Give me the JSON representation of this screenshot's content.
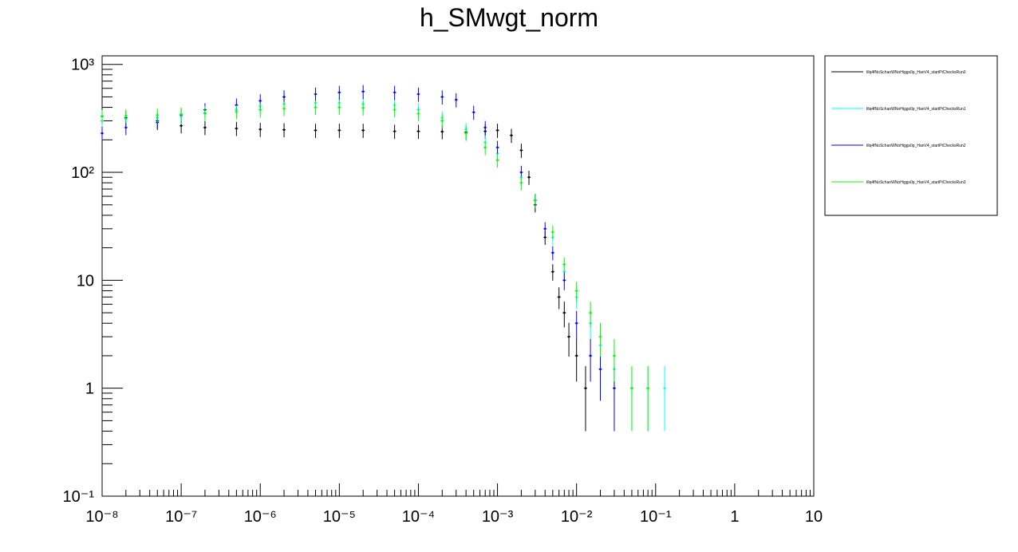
{
  "chart_data": {
    "type": "scatter",
    "title": "h_SMwgt_norm",
    "xlabel": "",
    "ylabel": "",
    "xscale": "log",
    "yscale": "log",
    "xlim": [
      1e-08,
      10
    ],
    "ylim": [
      0.1,
      1200
    ],
    "x_ticks": [
      {
        "value": 1e-08,
        "label": "10⁻⁸"
      },
      {
        "value": 1e-07,
        "label": "10⁻⁷"
      },
      {
        "value": 1e-06,
        "label": "10⁻⁶"
      },
      {
        "value": 1e-05,
        "label": "10⁻⁵"
      },
      {
        "value": 0.0001,
        "label": "10⁻⁴"
      },
      {
        "value": 0.001,
        "label": "10⁻³"
      },
      {
        "value": 0.01,
        "label": "10⁻²"
      },
      {
        "value": 0.1,
        "label": "10⁻¹"
      },
      {
        "value": 1,
        "label": "1"
      },
      {
        "value": 10,
        "label": "10"
      }
    ],
    "y_ticks": [
      {
        "value": 0.1,
        "label": "10⁻¹"
      },
      {
        "value": 1,
        "label": "1"
      },
      {
        "value": 10,
        "label": "10"
      },
      {
        "value": 100,
        "label": "10²"
      },
      {
        "value": 1000,
        "label": "10³"
      }
    ],
    "legend_position": "right",
    "grid": false,
    "series": [
      {
        "name": "tllq4fNoSchanWNoHiggs0p_HanV4_startPtChecksRun0",
        "color": "#000000",
        "points": [
          [
            1e-08,
            330
          ],
          [
            2e-08,
            320
          ],
          [
            5e-08,
            290
          ],
          [
            1e-07,
            270
          ],
          [
            2e-07,
            260
          ],
          [
            5e-07,
            255
          ],
          [
            1e-06,
            250
          ],
          [
            2e-06,
            248
          ],
          [
            5e-06,
            245
          ],
          [
            1e-05,
            245
          ],
          [
            2e-05,
            245
          ],
          [
            5e-05,
            240
          ],
          [
            0.0001,
            240
          ],
          [
            0.0002,
            238
          ],
          [
            0.0004,
            235
          ],
          [
            0.0007,
            240
          ],
          [
            0.001,
            245
          ],
          [
            0.0015,
            220
          ],
          [
            0.002,
            160
          ],
          [
            0.0025,
            90
          ],
          [
            0.003,
            50
          ],
          [
            0.004,
            25
          ],
          [
            0.005,
            12
          ],
          [
            0.006,
            7
          ],
          [
            0.007,
            5
          ],
          [
            0.008,
            3
          ],
          [
            0.01,
            2
          ],
          [
            0.013,
            1
          ]
        ]
      },
      {
        "name": "tllq4fNoSchanWNoHiggs0p_HanV4_startPtChecksRun1",
        "color": "#00ffff",
        "points": [
          [
            1e-08,
            300
          ],
          [
            2e-08,
            310
          ],
          [
            5e-08,
            320
          ],
          [
            1e-07,
            330
          ],
          [
            2e-07,
            350
          ],
          [
            5e-07,
            380
          ],
          [
            1e-06,
            410
          ],
          [
            2e-06,
            430
          ],
          [
            5e-06,
            440
          ],
          [
            1e-05,
            440
          ],
          [
            2e-05,
            430
          ],
          [
            5e-05,
            420
          ],
          [
            0.0001,
            380
          ],
          [
            0.0002,
            320
          ],
          [
            0.0004,
            250
          ],
          [
            0.0007,
            190
          ],
          [
            0.001,
            150
          ],
          [
            0.002,
            90
          ],
          [
            0.003,
            55
          ],
          [
            0.005,
            25
          ],
          [
            0.007,
            12
          ],
          [
            0.01,
            7
          ],
          [
            0.015,
            4
          ],
          [
            0.02,
            2.5
          ],
          [
            0.03,
            1.5
          ],
          [
            0.05,
            1
          ],
          [
            0.08,
            1
          ],
          [
            0.13,
            1
          ]
        ]
      },
      {
        "name": "tllq4fNoSchanWNoHiggs0p_HanV4_startPtChecksRun2",
        "color": "#0000ff",
        "points": [
          [
            1e-08,
            230
          ],
          [
            2e-08,
            260
          ],
          [
            5e-08,
            300
          ],
          [
            1e-07,
            340
          ],
          [
            2e-07,
            380
          ],
          [
            5e-07,
            420
          ],
          [
            1e-06,
            460
          ],
          [
            2e-06,
            500
          ],
          [
            5e-06,
            530
          ],
          [
            1e-05,
            550
          ],
          [
            2e-05,
            560
          ],
          [
            5e-05,
            550
          ],
          [
            0.0001,
            530
          ],
          [
            0.0002,
            500
          ],
          [
            0.0003,
            470
          ],
          [
            0.0005,
            360
          ],
          [
            0.0007,
            260
          ],
          [
            0.001,
            170
          ],
          [
            0.002,
            100
          ],
          [
            0.003,
            55
          ],
          [
            0.004,
            30
          ],
          [
            0.005,
            18
          ],
          [
            0.007,
            10
          ],
          [
            0.01,
            4
          ],
          [
            0.015,
            2
          ],
          [
            0.02,
            1.5
          ],
          [
            0.03,
            1
          ]
        ]
      },
      {
        "name": "tllq4fNoSchanWNoHiggs0p_HanV4_startPtChecksRun3",
        "color": "#00ff00",
        "points": [
          [
            1e-08,
            330
          ],
          [
            2e-08,
            335
          ],
          [
            5e-08,
            340
          ],
          [
            1e-07,
            345
          ],
          [
            2e-07,
            355
          ],
          [
            5e-07,
            365
          ],
          [
            1e-06,
            380
          ],
          [
            2e-06,
            390
          ],
          [
            5e-06,
            400
          ],
          [
            1e-05,
            400
          ],
          [
            2e-05,
            395
          ],
          [
            5e-05,
            380
          ],
          [
            0.0001,
            350
          ],
          [
            0.0002,
            300
          ],
          [
            0.0004,
            230
          ],
          [
            0.0007,
            170
          ],
          [
            0.001,
            130
          ],
          [
            0.002,
            80
          ],
          [
            0.003,
            55
          ],
          [
            0.005,
            28
          ],
          [
            0.007,
            14
          ],
          [
            0.01,
            8
          ],
          [
            0.015,
            5
          ],
          [
            0.02,
            3
          ],
          [
            0.03,
            2
          ],
          [
            0.05,
            1
          ],
          [
            0.08,
            1
          ]
        ]
      }
    ]
  }
}
